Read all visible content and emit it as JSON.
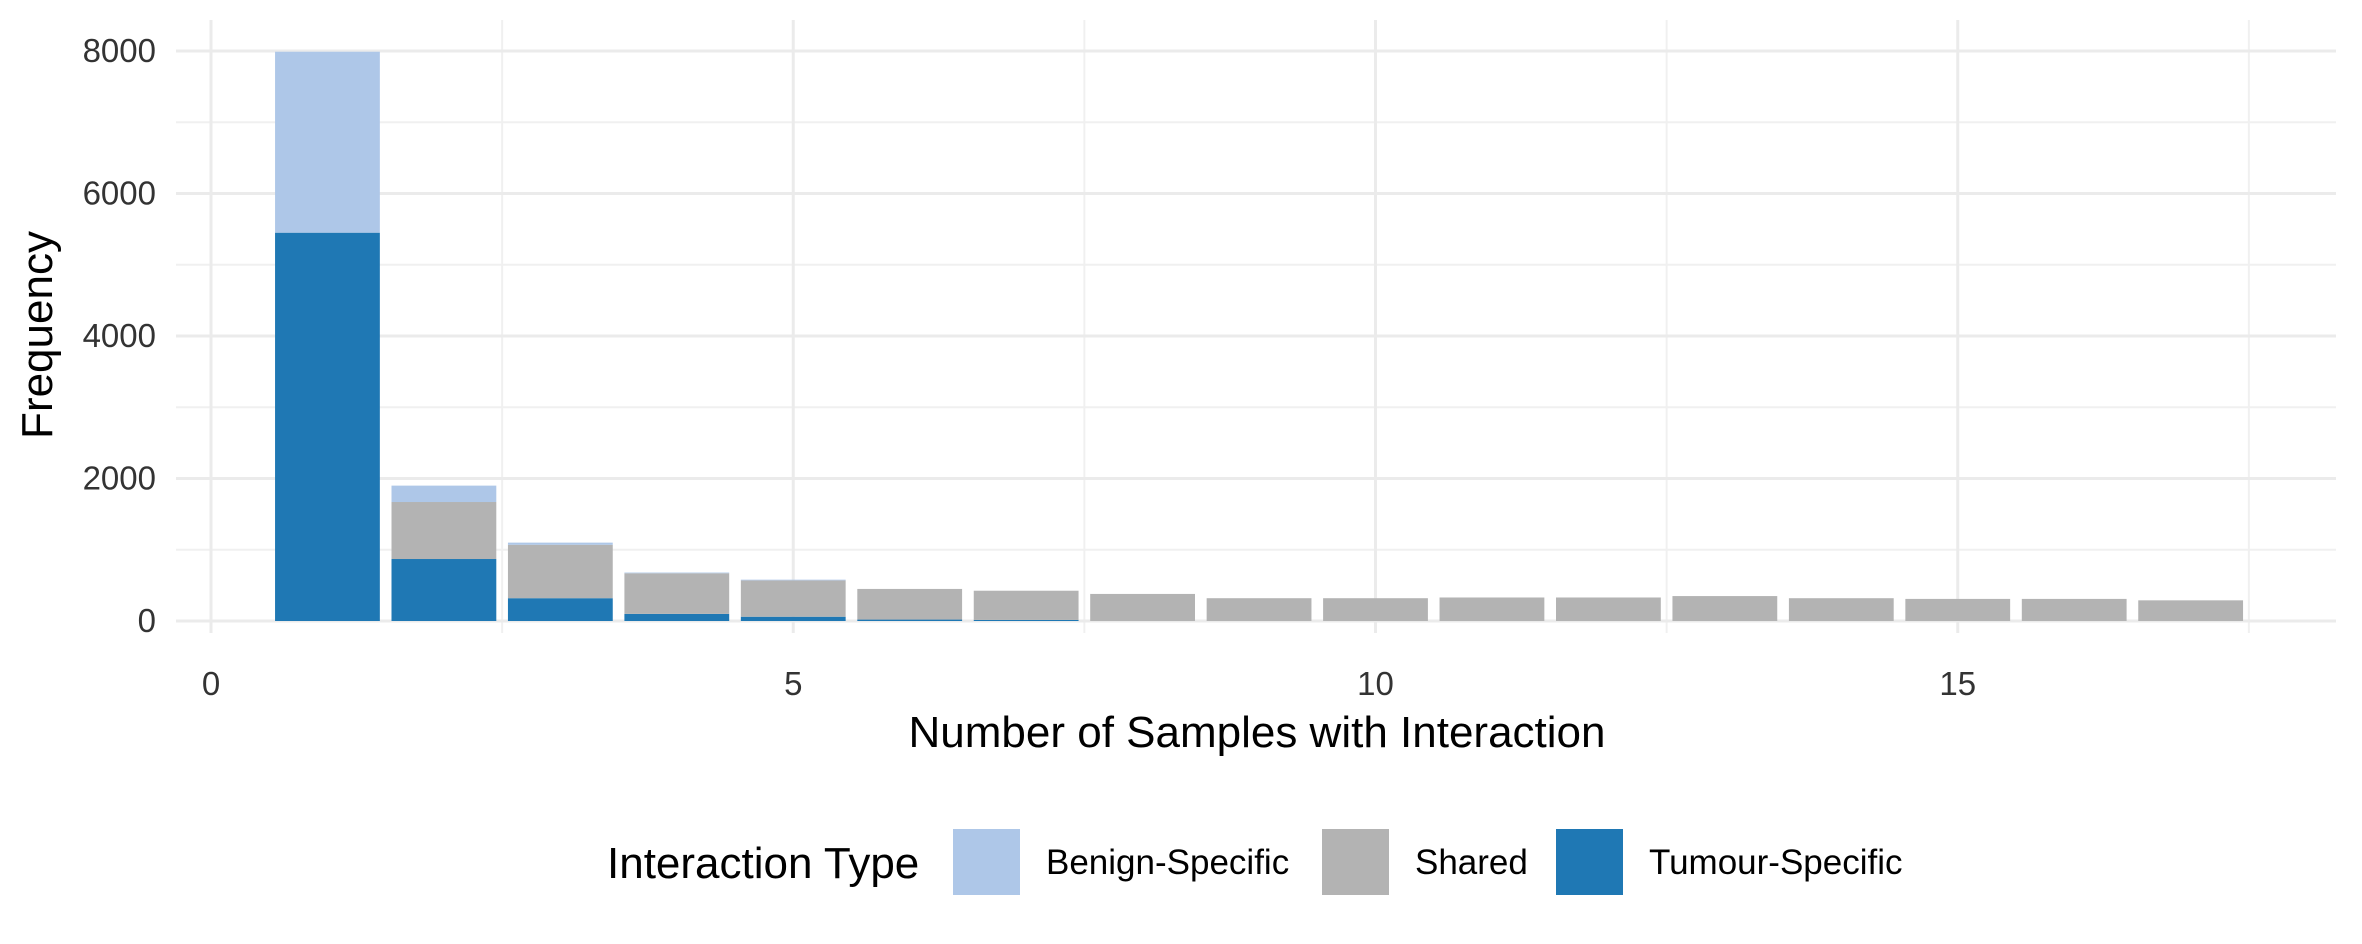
{
  "chart_data": {
    "type": "bar",
    "stacked": true,
    "title": "",
    "xlabel": "Number of Samples with Interaction",
    "ylabel": "Frequency",
    "xlim": [
      0,
      18
    ],
    "ylim": [
      0,
      8000
    ],
    "x_ticks": [
      0,
      5,
      10,
      15
    ],
    "y_ticks": [
      0,
      2000,
      4000,
      6000,
      8000
    ],
    "grid": true,
    "legend_position": "bottom",
    "legend_title": "Interaction Type",
    "x": [
      1,
      2,
      3,
      4,
      5,
      6,
      7,
      8,
      9,
      10,
      11,
      12,
      13,
      14,
      15,
      16,
      17
    ],
    "series": [
      {
        "name": "Tumour-Specific",
        "color": "#1f78b4",
        "values": [
          5450,
          870,
          320,
          100,
          60,
          20,
          15,
          0,
          0,
          0,
          0,
          0,
          0,
          0,
          0,
          0,
          0
        ]
      },
      {
        "name": "Shared",
        "color": "#b3b3b3",
        "values": [
          0,
          800,
          750,
          570,
          510,
          430,
          410,
          380,
          320,
          320,
          330,
          330,
          350,
          320,
          310,
          310,
          290
        ]
      },
      {
        "name": "Benign-Specific",
        "color": "#aec7e8",
        "values": [
          2540,
          230,
          30,
          10,
          10,
          0,
          0,
          0,
          0,
          0,
          0,
          0,
          0,
          0,
          0,
          0,
          0
        ]
      }
    ],
    "legend_order": [
      "Benign-Specific",
      "Shared",
      "Tumour-Specific"
    ]
  }
}
